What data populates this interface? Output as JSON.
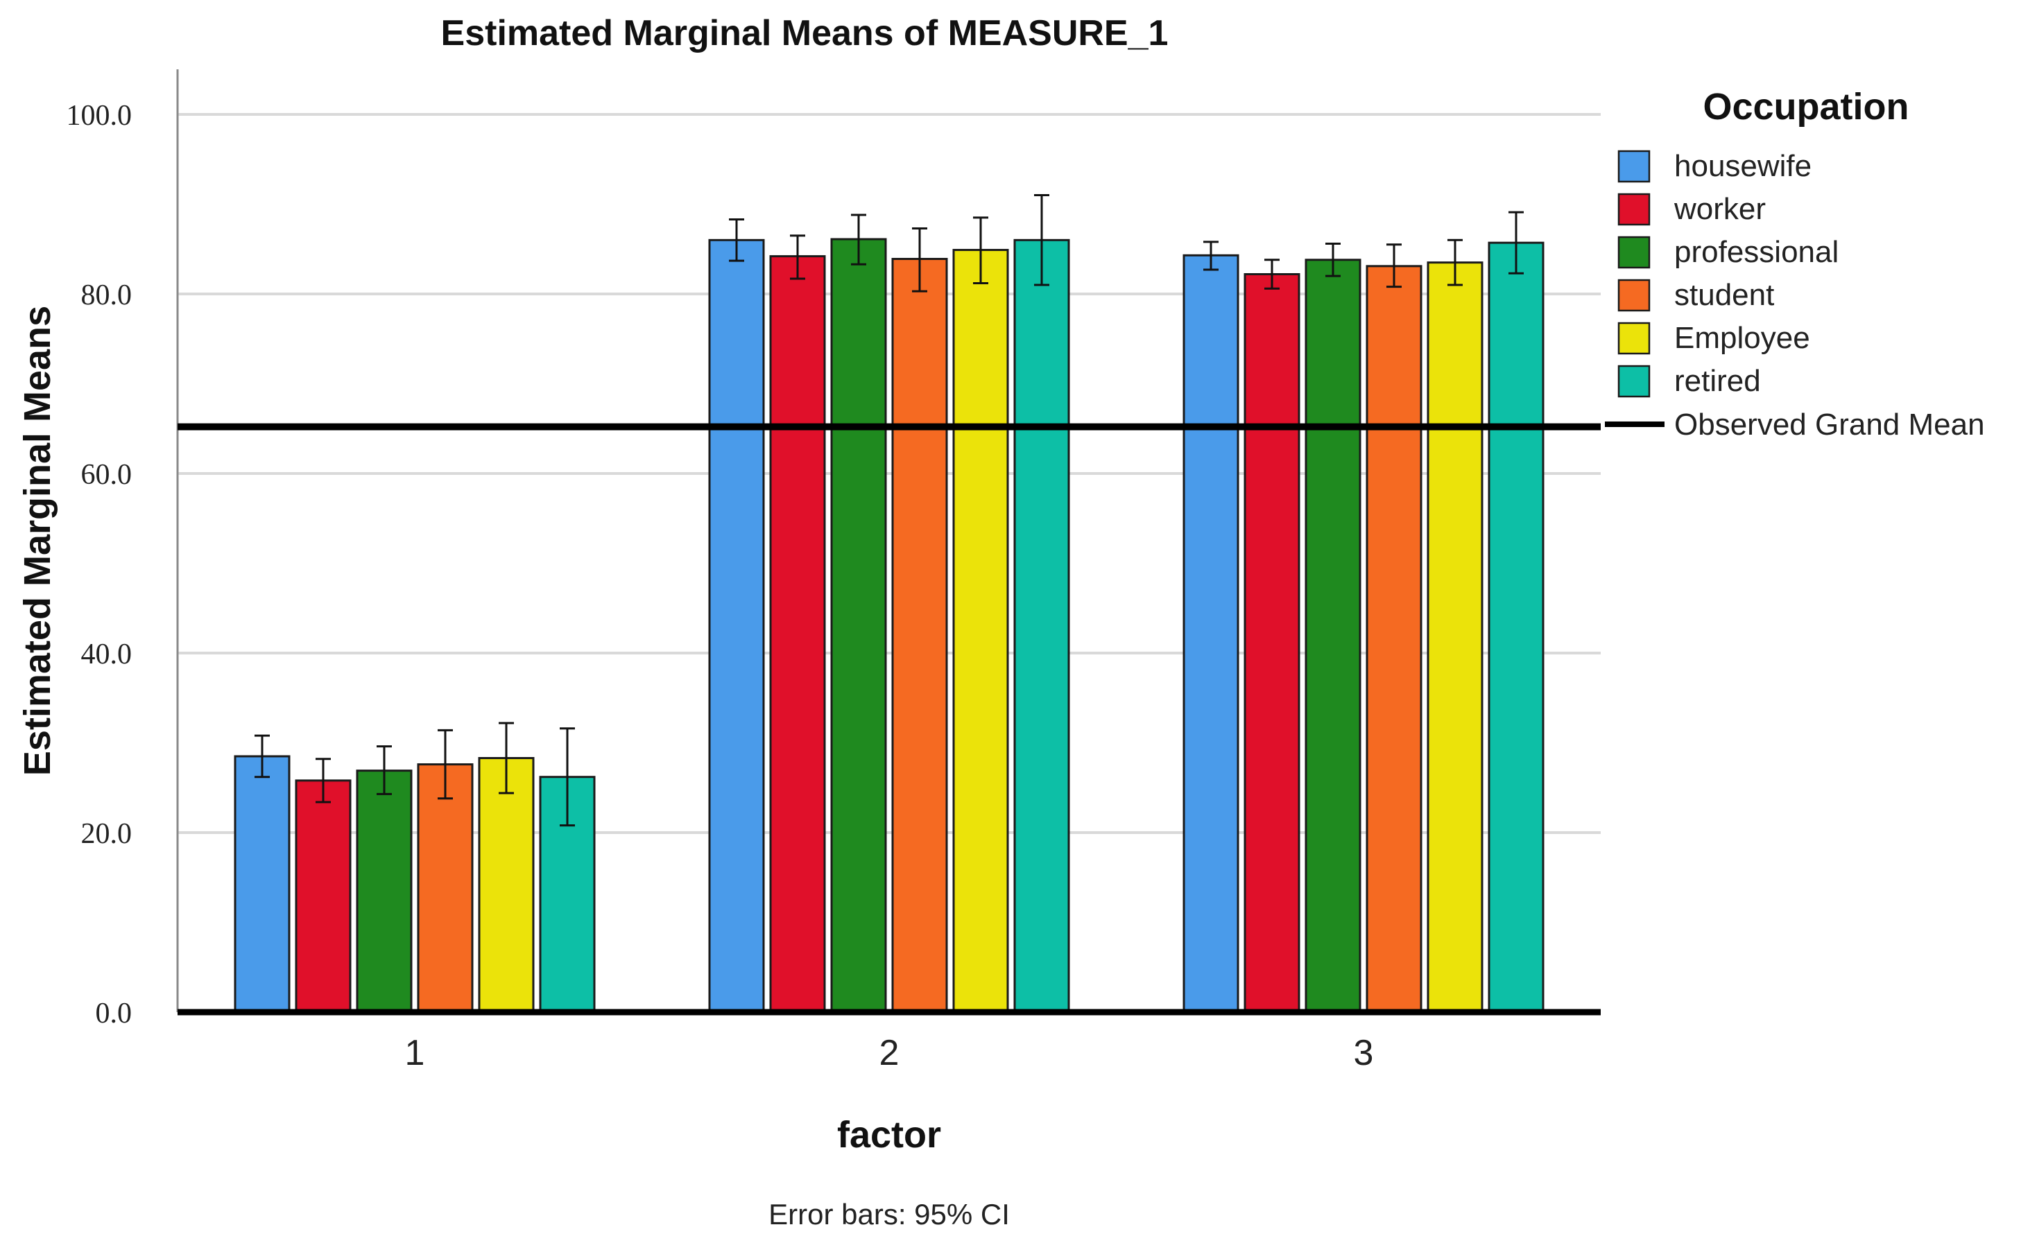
{
  "chart_data": {
    "type": "bar",
    "title": "Estimated Marginal Means of MEASURE_1",
    "xlabel": "factor",
    "ylabel": "Estimated Marginal Means",
    "categories": [
      "1",
      "2",
      "3"
    ],
    "ylim": [
      0,
      100
    ],
    "yticks": [
      0,
      20,
      40,
      60,
      80,
      100
    ],
    "ytick_labels": [
      "0.0",
      "20.0",
      "40.0",
      "60.0",
      "80.0",
      "100.0"
    ],
    "grid": true,
    "legend_title": "Occupation",
    "legend_position": "right",
    "series": [
      {
        "name": "housewife",
        "color": "#4a9bea",
        "values": [
          28.5,
          86.0,
          84.3
        ],
        "ci_low": [
          26.2,
          83.7,
          82.7
        ],
        "ci_high": [
          30.8,
          88.3,
          85.8
        ]
      },
      {
        "name": "worker",
        "color": "#e0102a",
        "values": [
          25.8,
          84.2,
          82.2
        ],
        "ci_low": [
          23.4,
          81.7,
          80.6
        ],
        "ci_high": [
          28.2,
          86.5,
          83.8
        ]
      },
      {
        "name": "professional",
        "color": "#1f8a1f",
        "values": [
          26.9,
          86.1,
          83.8
        ],
        "ci_low": [
          24.3,
          83.3,
          82.0
        ],
        "ci_high": [
          29.6,
          88.8,
          85.6
        ]
      },
      {
        "name": "student",
        "color": "#f56a22",
        "values": [
          27.6,
          83.9,
          83.1
        ],
        "ci_low": [
          23.8,
          80.3,
          80.8
        ],
        "ci_high": [
          31.4,
          87.3,
          85.5
        ]
      },
      {
        "name": "Employee",
        "color": "#ebe30a",
        "values": [
          28.3,
          84.9,
          83.5
        ],
        "ci_low": [
          24.4,
          81.2,
          81.0
        ],
        "ci_high": [
          32.2,
          88.5,
          86.0
        ]
      },
      {
        "name": "retired",
        "color": "#0dbfa6",
        "values": [
          26.2,
          86.0,
          85.7
        ],
        "ci_low": [
          20.8,
          81.0,
          82.3
        ],
        "ci_high": [
          31.6,
          91.0,
          89.1
        ]
      }
    ],
    "reference_line": {
      "label": "Observed Grand Mean",
      "value": 65.2
    },
    "footnote": "Error bars: 95% CI"
  }
}
